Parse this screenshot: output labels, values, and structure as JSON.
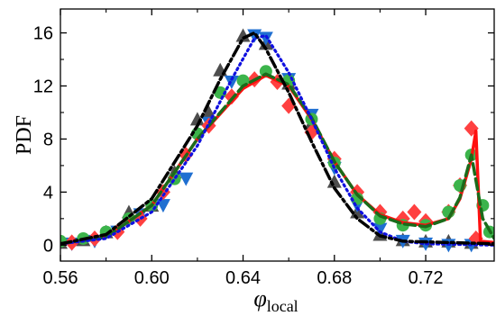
{
  "chart_data": {
    "type": "line",
    "xlabel": "φ",
    "xlabel_sub": "local",
    "ylabel": "PDF",
    "xlim": [
      0.56,
      0.75
    ],
    "ylim": [
      -1.2,
      17.8
    ],
    "x_ticks": [
      0.56,
      0.6,
      0.64,
      0.68,
      0.72
    ],
    "x_tick_labels": [
      "0.56",
      "0.60",
      "0.64",
      "0.68",
      "0.72"
    ],
    "y_ticks": [
      0,
      4,
      8,
      12,
      16
    ],
    "y_tick_labels": [
      "0",
      "4",
      "8",
      "12",
      "16"
    ],
    "grid": false,
    "legend": "none",
    "series": [
      {
        "color": "#4d4d4d",
        "marker": "triangle-up",
        "line_style": "dash-dot",
        "line_color": "#000000",
        "points": [
          [
            0.56,
            0.2
          ],
          [
            0.57,
            0.4
          ],
          [
            0.58,
            1.0
          ],
          [
            0.59,
            2.5
          ],
          [
            0.6,
            3.0
          ],
          [
            0.61,
            5.5
          ],
          [
            0.62,
            9.5
          ],
          [
            0.625,
            10.0
          ],
          [
            0.63,
            13.2
          ],
          [
            0.64,
            15.8
          ],
          [
            0.65,
            15.2
          ],
          [
            0.66,
            12.2
          ],
          [
            0.67,
            9.2
          ],
          [
            0.68,
            4.8
          ],
          [
            0.69,
            2.5
          ],
          [
            0.7,
            0.8
          ],
          [
            0.71,
            0.4
          ],
          [
            0.72,
            0.3
          ],
          [
            0.73,
            0.3
          ],
          [
            0.74,
            0.2
          ]
        ]
      },
      {
        "color": "#1f6fd1",
        "marker": "triangle-down",
        "line_style": "dotted",
        "line_color": "#1010e0",
        "points": [
          [
            0.565,
            0.1
          ],
          [
            0.575,
            0.3
          ],
          [
            0.585,
            1.0
          ],
          [
            0.595,
            2.3
          ],
          [
            0.605,
            3.0
          ],
          [
            0.615,
            5.0
          ],
          [
            0.625,
            9.2
          ],
          [
            0.635,
            12.3
          ],
          [
            0.645,
            15.8
          ],
          [
            0.65,
            15.6
          ],
          [
            0.66,
            12.5
          ],
          [
            0.67,
            9.8
          ],
          [
            0.68,
            5.8
          ],
          [
            0.69,
            3.0
          ],
          [
            0.7,
            1.2
          ],
          [
            0.71,
            0.3
          ],
          [
            0.72,
            0.1
          ],
          [
            0.73,
            0.0
          ],
          [
            0.74,
            0.0
          ]
        ]
      },
      {
        "color": "#ff4040",
        "marker": "diamond",
        "line_style": "solid",
        "line_color": "#ff1010",
        "points": [
          [
            0.565,
            0.2
          ],
          [
            0.575,
            0.5
          ],
          [
            0.585,
            1.0
          ],
          [
            0.595,
            2.0
          ],
          [
            0.605,
            4.0
          ],
          [
            0.615,
            6.8
          ],
          [
            0.625,
            9.0
          ],
          [
            0.635,
            11.2
          ],
          [
            0.645,
            12.5
          ],
          [
            0.655,
            12.3
          ],
          [
            0.66,
            10.5
          ],
          [
            0.67,
            8.5
          ],
          [
            0.68,
            6.5
          ],
          [
            0.69,
            4.0
          ],
          [
            0.7,
            2.5
          ],
          [
            0.71,
            2.0
          ],
          [
            0.715,
            2.5
          ],
          [
            0.72,
            1.8
          ],
          [
            0.73,
            2.5
          ],
          [
            0.735,
            4.5
          ],
          [
            0.74,
            8.8
          ],
          [
            0.742,
            0.5
          ]
        ]
      },
      {
        "color": "#3cb44b",
        "marker": "circle",
        "line_style": "dashed",
        "line_color": "#1a6b1a",
        "points": [
          [
            0.56,
            0.3
          ],
          [
            0.57,
            0.5
          ],
          [
            0.58,
            1.0
          ],
          [
            0.59,
            2.0
          ],
          [
            0.6,
            3.0
          ],
          [
            0.61,
            5.0
          ],
          [
            0.62,
            8.4
          ],
          [
            0.63,
            11.5
          ],
          [
            0.64,
            12.4
          ],
          [
            0.65,
            13.1
          ],
          [
            0.66,
            12.4
          ],
          [
            0.67,
            9.5
          ],
          [
            0.68,
            6.2
          ],
          [
            0.69,
            3.5
          ],
          [
            0.7,
            2.0
          ],
          [
            0.71,
            1.5
          ],
          [
            0.72,
            1.5
          ],
          [
            0.73,
            2.5
          ],
          [
            0.735,
            4.5
          ],
          [
            0.74,
            6.8
          ],
          [
            0.745,
            3.0
          ],
          [
            0.748,
            1.0
          ]
        ]
      }
    ],
    "curves": [
      {
        "color": "#ff1010",
        "style": "solid",
        "points": [
          [
            0.56,
            0.1
          ],
          [
            0.58,
            0.6
          ],
          [
            0.6,
            3.0
          ],
          [
            0.62,
            8.0
          ],
          [
            0.64,
            11.8
          ],
          [
            0.65,
            12.8
          ],
          [
            0.66,
            12.0
          ],
          [
            0.67,
            9.5
          ],
          [
            0.68,
            6.3
          ],
          [
            0.69,
            3.8
          ],
          [
            0.7,
            2.3
          ],
          [
            0.71,
            1.7
          ],
          [
            0.72,
            1.5
          ],
          [
            0.73,
            2.0
          ],
          [
            0.735,
            3.5
          ],
          [
            0.74,
            6.5
          ],
          [
            0.742,
            8.6
          ],
          [
            0.744,
            0.3
          ],
          [
            0.75,
            0.2
          ]
        ]
      },
      {
        "color": "#1a6b1a",
        "style": "dashed",
        "points": [
          [
            0.56,
            0.1
          ],
          [
            0.58,
            0.6
          ],
          [
            0.6,
            3.0
          ],
          [
            0.62,
            8.0
          ],
          [
            0.64,
            12.0
          ],
          [
            0.65,
            12.9
          ],
          [
            0.66,
            12.1
          ],
          [
            0.67,
            9.6
          ],
          [
            0.68,
            6.3
          ],
          [
            0.69,
            3.8
          ],
          [
            0.7,
            2.2
          ],
          [
            0.71,
            1.6
          ],
          [
            0.72,
            1.4
          ],
          [
            0.73,
            2.0
          ],
          [
            0.735,
            3.6
          ],
          [
            0.74,
            6.8
          ],
          [
            0.745,
            2.0
          ],
          [
            0.75,
            0.5
          ]
        ]
      },
      {
        "color": "#1010e0",
        "style": "dotted",
        "points": [
          [
            0.56,
            0.1
          ],
          [
            0.58,
            0.5
          ],
          [
            0.6,
            2.5
          ],
          [
            0.62,
            7.5
          ],
          [
            0.635,
            12.5
          ],
          [
            0.645,
            15.6
          ],
          [
            0.65,
            15.8
          ],
          [
            0.66,
            13.0
          ],
          [
            0.67,
            9.5
          ],
          [
            0.68,
            5.8
          ],
          [
            0.69,
            2.8
          ],
          [
            0.7,
            1.0
          ],
          [
            0.71,
            0.3
          ],
          [
            0.72,
            0.1
          ],
          [
            0.75,
            0.0
          ]
        ]
      },
      {
        "color": "#000000",
        "style": "dashdot",
        "points": [
          [
            0.56,
            0.1
          ],
          [
            0.58,
            0.8
          ],
          [
            0.6,
            3.5
          ],
          [
            0.62,
            9.0
          ],
          [
            0.63,
            12.5
          ],
          [
            0.64,
            15.6
          ],
          [
            0.645,
            16.0
          ],
          [
            0.65,
            14.8
          ],
          [
            0.66,
            11.5
          ],
          [
            0.67,
            7.8
          ],
          [
            0.68,
            4.3
          ],
          [
            0.69,
            2.0
          ],
          [
            0.7,
            0.7
          ],
          [
            0.71,
            0.3
          ],
          [
            0.75,
            0.1
          ]
        ]
      }
    ]
  }
}
